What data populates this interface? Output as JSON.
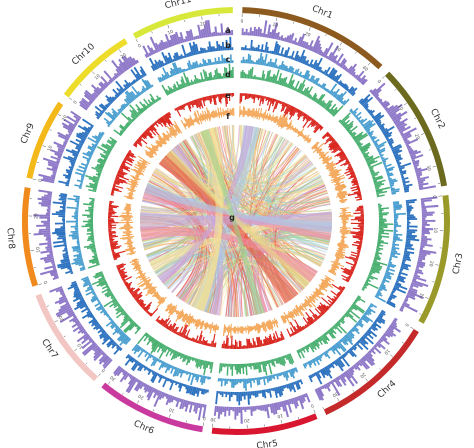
{
  "figure": {
    "chromosomes": [
      {
        "name": "Chr1",
        "color": "#8c5a1f",
        "length": 43,
        "ticks": [
          "0",
          "10",
          "20",
          "30",
          "40"
        ]
      },
      {
        "name": "Chr2",
        "color": "#6b6a1e",
        "length": 36,
        "ticks": [
          "0",
          "10",
          "20",
          "30"
        ]
      },
      {
        "name": "Chr3",
        "color": "#9a9a2a",
        "length": 37,
        "ticks": [
          "0",
          "10",
          "20",
          "30"
        ]
      },
      {
        "name": "Chr4",
        "color": "#c42a2a",
        "length": 35,
        "ticks": [
          "0",
          "10",
          "20",
          "30"
        ]
      },
      {
        "name": "Chr5",
        "color": "#d8162f",
        "length": 30,
        "ticks": [
          "0",
          "10",
          "20",
          "30"
        ]
      },
      {
        "name": "Chr6",
        "color": "#c93a9e",
        "length": 31,
        "ticks": [
          "0",
          "10",
          "20",
          "30"
        ]
      },
      {
        "name": "Chr7",
        "color": "#f2c6c2",
        "length": 29,
        "ticks": [
          "0",
          "10",
          "20"
        ]
      },
      {
        "name": "Chr8",
        "color": "#f08a1c",
        "length": 28,
        "ticks": [
          "0",
          "10",
          "20"
        ]
      },
      {
        "name": "Chr9",
        "color": "#f3b81a",
        "length": 23,
        "ticks": [
          "0",
          "10",
          "20"
        ]
      },
      {
        "name": "Chr10",
        "color": "#eddc2a",
        "length": 23,
        "ticks": [
          "0",
          "10",
          "20"
        ]
      },
      {
        "name": "Chr11",
        "color": "#d8e83a",
        "length": 29,
        "ticks": [
          "0",
          "10",
          "20"
        ]
      }
    ],
    "tracks": [
      {
        "letter": "a",
        "color": "#8e78c8"
      },
      {
        "letter": "b",
        "color": "#2e73c0"
      },
      {
        "letter": "c",
        "color": "#4b9fd0"
      },
      {
        "letter": "d",
        "color": "#4ab071"
      },
      {
        "letter": "e",
        "color": "#d9271f"
      },
      {
        "letter": "f",
        "color": "#f4a85a"
      }
    ],
    "center_label": "g",
    "link_colors": [
      "#a8cbe8",
      "#e8d78a",
      "#8ecfc4",
      "#f2a05a",
      "#e8503a",
      "#f08aa8",
      "#c8a6dc",
      "#9ed08a",
      "#f6e49a"
    ]
  }
}
